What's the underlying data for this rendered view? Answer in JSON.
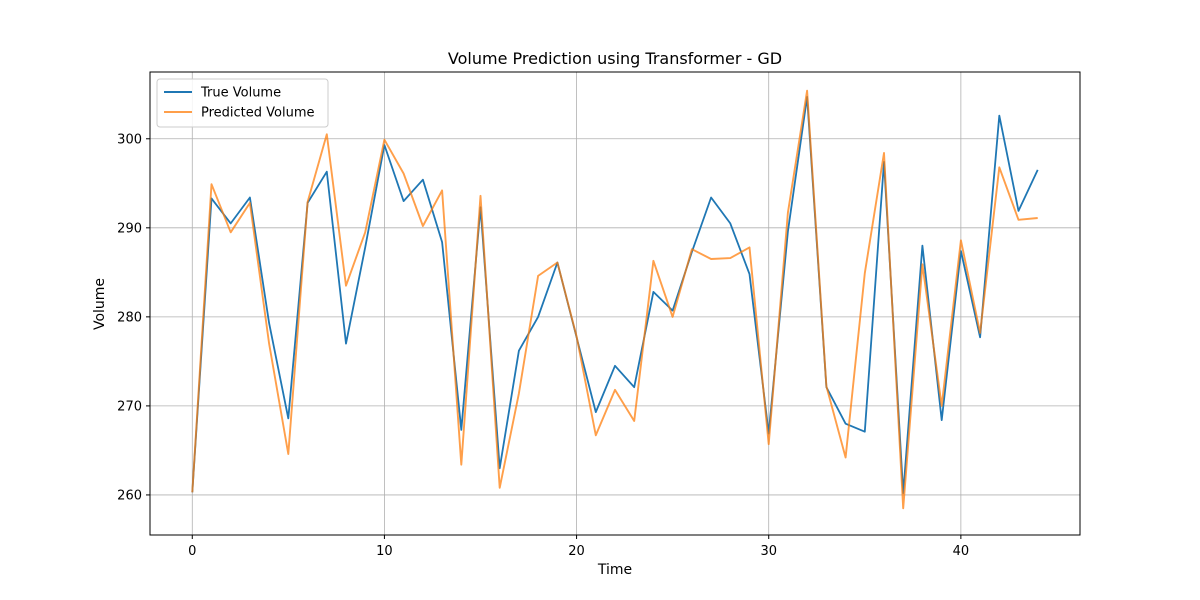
{
  "chart_data": {
    "type": "line",
    "title": "Volume Prediction using Transformer - GD",
    "xlabel": "Time",
    "ylabel": "Volume",
    "xlim": [
      -2.2,
      46.2
    ],
    "ylim": [
      255.5,
      307.5
    ],
    "xticks": [
      0,
      10,
      20,
      30,
      40
    ],
    "yticks": [
      260,
      270,
      280,
      290,
      300
    ],
    "grid": true,
    "legend_position": "top-left",
    "x": [
      0,
      1,
      2,
      3,
      4,
      5,
      6,
      7,
      8,
      9,
      10,
      11,
      12,
      13,
      14,
      15,
      16,
      17,
      18,
      19,
      20,
      21,
      22,
      23,
      24,
      25,
      26,
      27,
      28,
      29,
      30,
      31,
      32,
      33,
      34,
      35,
      36,
      37,
      38,
      39,
      40,
      41,
      42,
      43,
      44
    ],
    "series": [
      {
        "name": "True Volume",
        "color": "#1f77b4",
        "values": [
          260.3,
          293.3,
          290.5,
          293.4,
          279.3,
          268.6,
          292.8,
          296.3,
          277.0,
          287.8,
          299.3,
          293.0,
          295.4,
          288.4,
          267.3,
          292.3,
          263.0,
          276.2,
          280.0,
          286.1,
          277.7,
          269.3,
          274.5,
          272.1,
          282.8,
          280.7,
          287.3,
          293.4,
          290.5,
          284.8,
          266.9,
          289.6,
          304.7,
          272.1,
          268.0,
          267.1,
          297.4,
          260.2,
          288.0,
          268.4,
          287.4,
          277.7,
          302.6,
          291.9,
          296.5
        ]
      },
      {
        "name": "Predicted Volume",
        "color": "#ff7f0e",
        "values": [
          260.3,
          294.9,
          289.5,
          292.8,
          277.0,
          264.6,
          292.9,
          300.5,
          283.5,
          289.5,
          299.9,
          296.1,
          290.2,
          294.2,
          263.4,
          293.6,
          260.8,
          271.4,
          284.6,
          286.1,
          277.8,
          266.7,
          271.8,
          268.3,
          286.3,
          280.0,
          287.6,
          286.5,
          286.6,
          287.8,
          265.7,
          291.7,
          305.4,
          272.2,
          264.2,
          284.9,
          298.4,
          258.5,
          285.9,
          270.0,
          288.6,
          278.2,
          296.8,
          290.9,
          291.1
        ]
      }
    ]
  }
}
